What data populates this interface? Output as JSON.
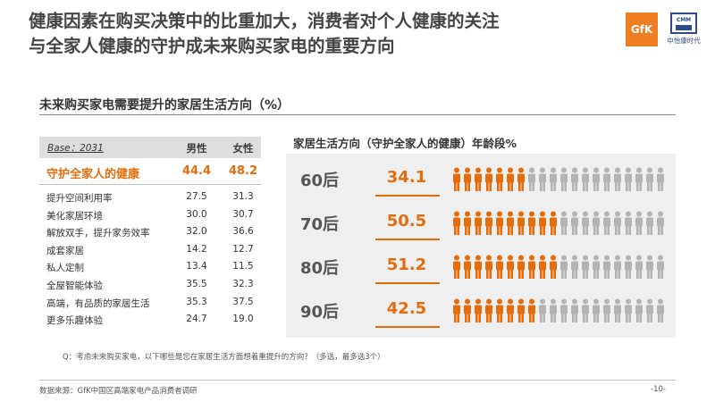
{
  "title_line1": "健康因素在购买决策中的比重加大，消费者对个人健康的关注",
  "title_line2": "与全家人健康的守护成未来购买家电的重要方向",
  "logo_gfk": "GfK",
  "logo_cmm": "CMM",
  "logo_cmm_cn": "中怡康时代",
  "colors": {
    "orange": "#e46c0a",
    "gray": "#b3b3b3"
  },
  "chart_data": [
    {
      "type": "table",
      "title": "未来购买家电需要提升的家居生活方向（%）",
      "base": "Base：2031",
      "columns": [
        "男性",
        "女性"
      ],
      "rows": [
        {
          "label": "守护全家人的健康",
          "male": "44.4",
          "female": "48.2",
          "highlight": true
        },
        {
          "label": "提升空间利用率",
          "male": "27.5",
          "female": "31.3"
        },
        {
          "label": "美化家居环境",
          "male": "30.0",
          "female": "30.7"
        },
        {
          "label": "解放双手，提升家务效率",
          "male": "32.0",
          "female": "36.6"
        },
        {
          "label": "成套家居",
          "male": "14.2",
          "female": "12.7"
        },
        {
          "label": "私人定制",
          "male": "13.4",
          "female": "11.5"
        },
        {
          "label": "全屋智能体验",
          "male": "35.5",
          "female": "32.3"
        },
        {
          "label": "高端，有品质的家居生活",
          "male": "35.3",
          "female": "37.5"
        },
        {
          "label": "更多乐趣体验",
          "male": "24.7",
          "female": "19.0"
        }
      ]
    },
    {
      "type": "bar",
      "title": "家居生活方向（守护全家人的健康）年龄段%",
      "categories": [
        "60后",
        "70后",
        "80后",
        "90后"
      ],
      "values": [
        34.1,
        50.5,
        51.2,
        42.5
      ],
      "icons_total": 20,
      "icons_filled": [
        7,
        10,
        10,
        8
      ]
    }
  ],
  "question": "Q：考虑未来购买家电，以下哪些是您在家居生活方面想着重提升的方向？（多选，最多选3个）",
  "source": "数据来源：GfK中国区高端家电产品消费者调研",
  "page_number": "-10-"
}
